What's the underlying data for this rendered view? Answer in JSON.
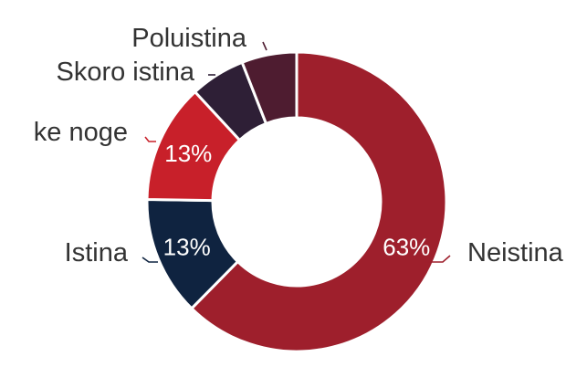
{
  "chart_data": {
    "type": "pie",
    "variant": "donut",
    "title": "",
    "legend": "none",
    "slices": [
      {
        "name": "Neistina",
        "value": 63,
        "label": "63%",
        "color": "#9e1f2c"
      },
      {
        "name": "Istina",
        "value": 13,
        "label": "13%",
        "color": "#0f2340"
      },
      {
        "name": "ke noge",
        "value": 13,
        "label": "13%",
        "color": "#c8202a"
      },
      {
        "name": "Skoro istina",
        "value": 6,
        "label": "",
        "color": "#2e1f36"
      },
      {
        "name": "Poluistina",
        "value": 6,
        "label": "",
        "color": "#4e1c30"
      }
    ]
  }
}
